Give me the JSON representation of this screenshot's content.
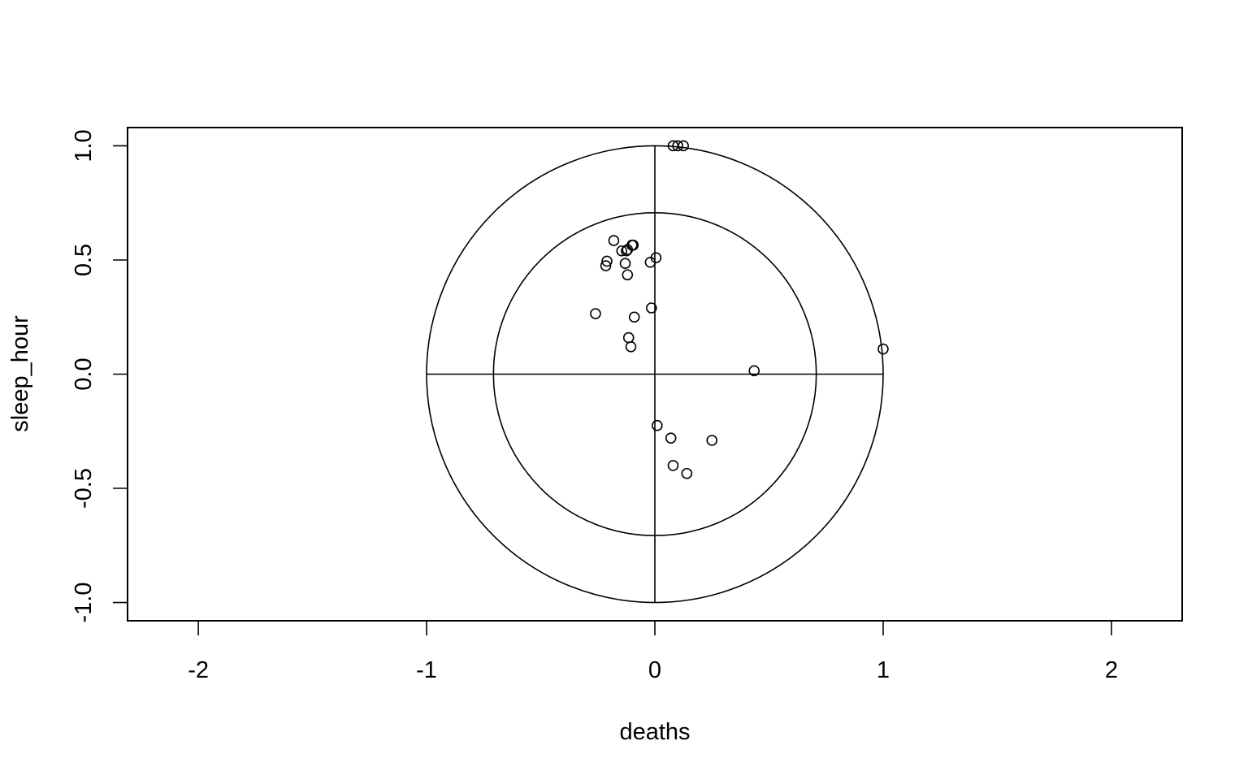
{
  "chart_data": {
    "type": "scatter",
    "title": "",
    "xlabel": "deaths",
    "ylabel": "sleep_hour",
    "xlim": [
      -2.31,
      2.31
    ],
    "ylim": [
      -1.08,
      1.08
    ],
    "x_ticks": [
      -2,
      -1,
      0,
      1,
      2
    ],
    "x_tick_labels": [
      "-2",
      "-1",
      "0",
      "1",
      "2"
    ],
    "y_ticks": [
      -1.0,
      -0.5,
      0.0,
      0.5,
      1.0
    ],
    "y_tick_labels": [
      "-1.0",
      "-0.5",
      "0.0",
      "0.5",
      "1.0"
    ],
    "grid": false,
    "legend": "none",
    "circles": [
      {
        "radius": 1.0
      },
      {
        "radius": 0.7071
      }
    ],
    "reference_lines": {
      "horizontal_at_y": 0,
      "vertical_at_x": 0,
      "extent": 1.0
    },
    "points": [
      {
        "x": 0.08,
        "y": 1.0
      },
      {
        "x": 0.1,
        "y": 1.0
      },
      {
        "x": 0.125,
        "y": 1.0
      },
      {
        "x": 1.0,
        "y": 0.11
      },
      {
        "x": 0.435,
        "y": 0.015
      },
      {
        "x": 0.005,
        "y": 0.51
      },
      {
        "x": -0.02,
        "y": 0.49
      },
      {
        "x": -0.18,
        "y": 0.585
      },
      {
        "x": -0.1,
        "y": 0.565
      },
      {
        "x": -0.095,
        "y": 0.565
      },
      {
        "x": -0.145,
        "y": 0.54
      },
      {
        "x": -0.125,
        "y": 0.54
      },
      {
        "x": -0.12,
        "y": 0.545
      },
      {
        "x": -0.21,
        "y": 0.495
      },
      {
        "x": -0.215,
        "y": 0.475
      },
      {
        "x": -0.13,
        "y": 0.485
      },
      {
        "x": -0.12,
        "y": 0.435
      },
      {
        "x": -0.015,
        "y": 0.29
      },
      {
        "x": -0.26,
        "y": 0.265
      },
      {
        "x": -0.09,
        "y": 0.25
      },
      {
        "x": -0.115,
        "y": 0.16
      },
      {
        "x": -0.105,
        "y": 0.12
      },
      {
        "x": 0.01,
        "y": -0.225
      },
      {
        "x": 0.07,
        "y": -0.28
      },
      {
        "x": 0.25,
        "y": -0.29
      },
      {
        "x": 0.08,
        "y": -0.4
      },
      {
        "x": 0.14,
        "y": -0.435
      }
    ],
    "colors": {
      "line": "#000000",
      "point_stroke": "#000000",
      "background": "#ffffff"
    }
  }
}
